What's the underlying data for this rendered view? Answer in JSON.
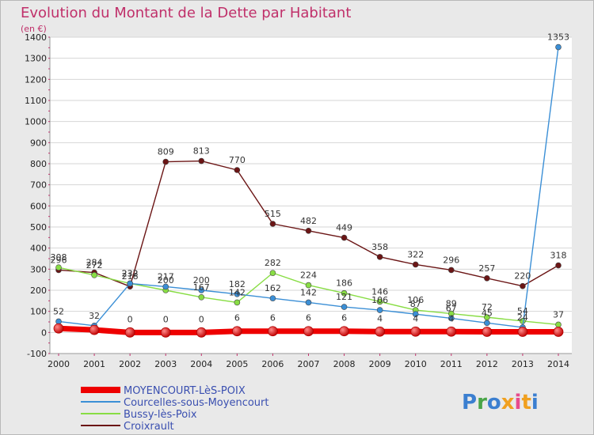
{
  "chart_data": {
    "type": "line",
    "title": "Evolution du Montant de la Dette par Habitant",
    "subtitle": "(en €)",
    "categories": [
      "2000",
      "2001",
      "2002",
      "2003",
      "2004",
      "2005",
      "2006",
      "2007",
      "2008",
      "2009",
      "2010",
      "2011",
      "2012",
      "2013",
      "2014"
    ],
    "ylim": [
      -100,
      1400
    ],
    "yticks": [
      -100,
      0,
      100,
      200,
      300,
      400,
      500,
      600,
      700,
      800,
      900,
      1000,
      1100,
      1200,
      1300,
      1400
    ],
    "grid": "horizontal",
    "legend_position": "bottom-left",
    "series": [
      {
        "name": "MOYENCOURT-LèS-POIX",
        "color": "#ee0000",
        "values": [
          19,
          12,
          0,
          0,
          0,
          6,
          6,
          6,
          6,
          4,
          4,
          4,
          3,
          3,
          3
        ],
        "labels": [
          "",
          "",
          "0",
          "0",
          "0",
          "6",
          "6",
          "6",
          "6",
          "4",
          "4",
          "4",
          "",
          "",
          ""
        ]
      },
      {
        "name": "Courcelles-sous-Moyencourt",
        "color": "#3b8fd6",
        "values": [
          52,
          32,
          232,
          217,
          200,
          182,
          162,
          142,
          121,
          106,
          87,
          67,
          45,
          24,
          1353
        ]
      },
      {
        "name": "Bussy-lès-Poix",
        "color": "#88dd44",
        "values": [
          308,
          272,
          232,
          200,
          167,
          142,
          282,
          224,
          186,
          146,
          106,
          89,
          72,
          54,
          37
        ]
      },
      {
        "name": "Croixrault",
        "color": "#6b1515",
        "values": [
          296,
          284,
          218,
          809,
          813,
          770,
          515,
          482,
          449,
          358,
          322,
          296,
          257,
          220,
          318
        ]
      }
    ]
  },
  "logo": {
    "text": "Proxiti"
  }
}
